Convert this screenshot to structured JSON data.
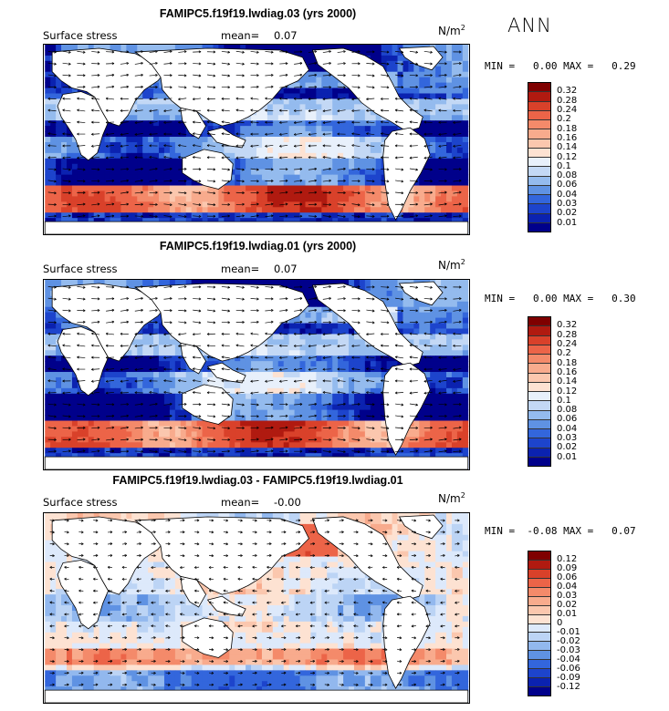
{
  "season": "ANN",
  "units_base": "N/m",
  "units_exp": "2",
  "panels": [
    {
      "title": "FAMIPC5.f19f19.lwdiag.03 (yrs 2000)",
      "variable": "Surface stress",
      "mean_label": "mean=",
      "mean_value": "0.07",
      "minmax": "MIN =   0.00 MAX =   0.29",
      "colorbar": {
        "labels": [
          "0.32",
          "0.28",
          "0.24",
          "0.2",
          "0.18",
          "0.16",
          "0.14",
          "0.12",
          "0.1",
          "0.08",
          "0.06",
          "0.04",
          "0.03",
          "0.02",
          "0.01"
        ],
        "colors": [
          "#7f0000",
          "#b01a10",
          "#d9412a",
          "#ec6448",
          "#f48a6a",
          "#f8ab8d",
          "#fbc7ae",
          "#fde2d2",
          "#e8f0fb",
          "#c3d8f5",
          "#94bbee",
          "#5f92e3",
          "#3366dc",
          "#1d44cc",
          "#0b22b0",
          "#00008b"
        ]
      }
    },
    {
      "title": "FAMIPC5.f19f19.lwdiag.01 (yrs 2000)",
      "variable": "Surface stress",
      "mean_label": "mean=",
      "mean_value": "0.07",
      "minmax": "MIN =   0.00 MAX =   0.30",
      "colorbar": {
        "labels": [
          "0.32",
          "0.28",
          "0.24",
          "0.2",
          "0.18",
          "0.16",
          "0.14",
          "0.12",
          "0.1",
          "0.08",
          "0.06",
          "0.04",
          "0.03",
          "0.02",
          "0.01"
        ],
        "colors": [
          "#7f0000",
          "#b01a10",
          "#d9412a",
          "#ec6448",
          "#f48a6a",
          "#f8ab8d",
          "#fbc7ae",
          "#fde2d2",
          "#e8f0fb",
          "#c3d8f5",
          "#94bbee",
          "#5f92e3",
          "#3366dc",
          "#1d44cc",
          "#0b22b0",
          "#00008b"
        ]
      }
    },
    {
      "title": "FAMIPC5.f19f19.lwdiag.03 - FAMIPC5.f19f19.lwdiag.01",
      "variable": "Surface stress",
      "mean_label": "mean=",
      "mean_value": "-0.00",
      "minmax": "MIN =  -0.08 MAX =   0.07",
      "colorbar": {
        "labels": [
          "0.12",
          "0.09",
          "0.06",
          "0.04",
          "0.03",
          "0.02",
          "0.01",
          "0",
          "-0.01",
          "-0.02",
          "-0.03",
          "-0.04",
          "-0.06",
          "-0.09",
          "-0.12"
        ],
        "colors": [
          "#7f0000",
          "#b01a10",
          "#d9412a",
          "#ec6448",
          "#f48a6a",
          "#f8ab8d",
          "#fbc7ae",
          "#fde2d2",
          "#dde9fb",
          "#bcd4f5",
          "#92b8ee",
          "#5f92e3",
          "#3366dc",
          "#1d44cc",
          "#0b22b0",
          "#00008b"
        ]
      }
    }
  ]
}
